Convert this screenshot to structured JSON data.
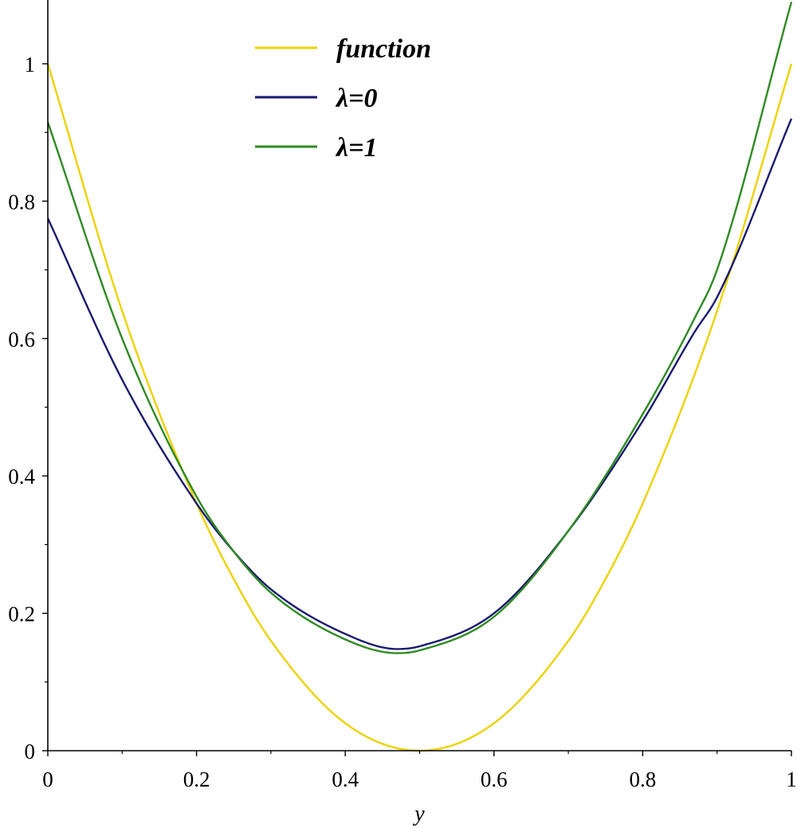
{
  "chart_data": {
    "type": "line",
    "title": "",
    "xlabel": "y",
    "ylabel": "",
    "xlim": [
      0,
      1
    ],
    "ylim": [
      0,
      1.08
    ],
    "x_ticks": [
      {
        "value": 0,
        "label": "0"
      },
      {
        "value": 0.2,
        "label": "0.2"
      },
      {
        "value": 0.4,
        "label": "0.4"
      },
      {
        "value": 0.6,
        "label": "0.6"
      },
      {
        "value": 0.8,
        "label": "0.8"
      },
      {
        "value": 1,
        "label": "1"
      }
    ],
    "y_ticks": [
      {
        "value": 0,
        "label": "0"
      },
      {
        "value": 0.2,
        "label": "0.2"
      },
      {
        "value": 0.4,
        "label": "0.4"
      },
      {
        "value": 0.6,
        "label": "0.6"
      },
      {
        "value": 0.8,
        "label": "0.8"
      },
      {
        "value": 1,
        "label": "1"
      }
    ],
    "x_minor_ticks": [
      0.1,
      0.3,
      0.5,
      0.7,
      0.9
    ],
    "y_minor_ticks": [
      0.1,
      0.3,
      0.5,
      0.7,
      0.9
    ],
    "grid": false,
    "legend_position": "top-center",
    "series": [
      {
        "name": "function",
        "color": "#eed200",
        "x": [
          0,
          0.1,
          0.2,
          0.25,
          0.3,
          0.4,
          0.5,
          0.6,
          0.7,
          0.75,
          0.8,
          0.9,
          1
        ],
        "y": [
          1,
          0.64,
          0.36,
          0.25,
          0.16,
          0.04,
          0,
          0.04,
          0.16,
          0.25,
          0.36,
          0.64,
          1
        ]
      },
      {
        "name": "λ=0",
        "color": "#1a1a6e",
        "x": [
          0,
          0.1,
          0.2,
          0.25,
          0.3,
          0.4,
          0.47,
          0.5,
          0.6,
          0.7,
          0.8,
          0.87,
          0.9,
          1
        ],
        "y": [
          0.775,
          0.54,
          0.36,
          0.29,
          0.235,
          0.17,
          0.148,
          0.152,
          0.2,
          0.32,
          0.48,
          0.61,
          0.66,
          0.92
        ]
      },
      {
        "name": "λ=1",
        "color": "#2e8b22",
        "x": [
          0,
          0.1,
          0.2,
          0.25,
          0.3,
          0.4,
          0.47,
          0.5,
          0.6,
          0.7,
          0.8,
          0.87,
          0.9,
          1
        ],
        "y": [
          0.915,
          0.6,
          0.37,
          0.29,
          0.23,
          0.162,
          0.142,
          0.146,
          0.195,
          0.32,
          0.49,
          0.63,
          0.7,
          1.09
        ]
      }
    ]
  }
}
